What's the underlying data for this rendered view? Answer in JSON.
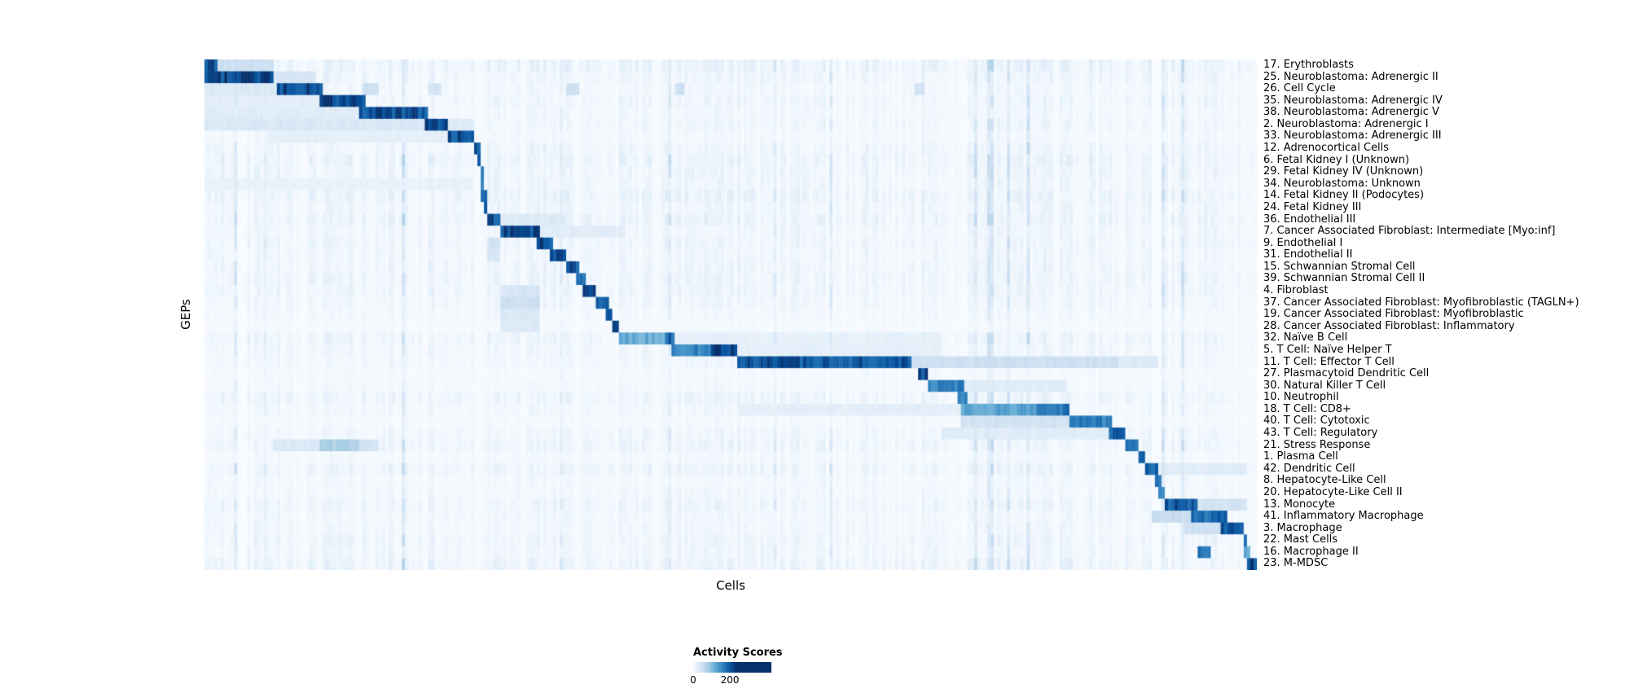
{
  "page": {
    "background": "#ffffff"
  },
  "chart_data": {
    "type": "heatmap",
    "title": "",
    "xlabel": "Cells",
    "ylabel": "GEPs",
    "colormap": "Blues",
    "colormap_stops": [
      [
        0.0,
        "#f7fbff"
      ],
      [
        0.125,
        "#deebf7"
      ],
      [
        0.25,
        "#c6dbef"
      ],
      [
        0.375,
        "#9ecae1"
      ],
      [
        0.5,
        "#6baed6"
      ],
      [
        0.625,
        "#4292c6"
      ],
      [
        0.75,
        "#2171b5"
      ],
      [
        0.875,
        "#08519c"
      ],
      [
        1.0,
        "#08306b"
      ]
    ],
    "colorbar": {
      "label": "Activity Scores",
      "min": 0,
      "max": 200,
      "ticks": [
        {
          "label": "0",
          "pos": 0.0
        },
        {
          "label": "200",
          "pos": 0.47
        }
      ]
    },
    "segment_format": "[x_start_fraction, x_end_fraction, activity_score]",
    "noise": {
      "columns": 320,
      "seed": 42,
      "base_max": 14,
      "streak_prob": 0.055,
      "streak_max": 42,
      "row_gain_min": 0.35,
      "row_gain_max": 1.35
    },
    "rows": [
      {
        "label": "17. Erythroblasts",
        "segments": [
          [
            0.0,
            0.012,
            185
          ],
          [
            0.012,
            0.065,
            45
          ]
        ]
      },
      {
        "label": "25. Neuroblastoma: Adrenergic II",
        "segments": [
          [
            0.0,
            0.065,
            200
          ],
          [
            0.065,
            0.105,
            35
          ]
        ]
      },
      {
        "label": "26. Cell Cycle",
        "segments": [
          [
            0.068,
            0.111,
            195
          ],
          [
            0.0,
            0.068,
            30
          ],
          [
            0.15,
            0.165,
            45
          ],
          [
            0.212,
            0.225,
            40
          ],
          [
            0.345,
            0.355,
            50
          ],
          [
            0.447,
            0.457,
            45
          ],
          [
            0.675,
            0.685,
            40
          ]
        ]
      },
      {
        "label": "35. Neuroblastoma: Adrenergic IV",
        "segments": [
          [
            0.108,
            0.152,
            195
          ],
          [
            0.0,
            0.108,
            22
          ]
        ]
      },
      {
        "label": "38. Neuroblastoma: Adrenergic V",
        "segments": [
          [
            0.148,
            0.212,
            190
          ],
          [
            0.0,
            0.148,
            25
          ]
        ]
      },
      {
        "label": "2. Neuroblastoma: Adrenergic I",
        "segments": [
          [
            0.21,
            0.231,
            200
          ],
          [
            0.0,
            0.21,
            32
          ],
          [
            0.231,
            0.257,
            25
          ]
        ]
      },
      {
        "label": "33. Neuroblastoma: Adrenergic III",
        "segments": [
          [
            0.23,
            0.257,
            190
          ],
          [
            0.06,
            0.23,
            20
          ]
        ]
      },
      {
        "label": "12. Adrenocortical Cells",
        "segments": [
          [
            0.257,
            0.263,
            185
          ]
        ]
      },
      {
        "label": "6. Fetal Kidney I (Unknown)",
        "segments": [
          [
            0.259,
            0.264,
            170
          ]
        ]
      },
      {
        "label": "29. Fetal Kidney IV (Unknown)",
        "segments": [
          [
            0.261,
            0.266,
            160
          ]
        ]
      },
      {
        "label": "34. Neuroblastoma: Unknown",
        "segments": [
          [
            0.262,
            0.267,
            150
          ],
          [
            0.0,
            0.257,
            15
          ]
        ]
      },
      {
        "label": "14. Fetal Kidney II (Podocytes)",
        "segments": [
          [
            0.264,
            0.268,
            170
          ]
        ]
      },
      {
        "label": "24. Fetal Kidney III",
        "segments": [
          [
            0.265,
            0.27,
            175
          ]
        ]
      },
      {
        "label": "36. Endothelial III",
        "segments": [
          [
            0.269,
            0.282,
            190
          ],
          [
            0.282,
            0.345,
            28
          ]
        ]
      },
      {
        "label": "7. Cancer Associated Fibroblast: Intermediate [Myo:inf]",
        "segments": [
          [
            0.282,
            0.318,
            195
          ],
          [
            0.318,
            0.4,
            25
          ]
        ]
      },
      {
        "label": "9. Endothelial I",
        "segments": [
          [
            0.316,
            0.331,
            190
          ],
          [
            0.269,
            0.282,
            40
          ]
        ]
      },
      {
        "label": "31. Endothelial II",
        "segments": [
          [
            0.329,
            0.344,
            185
          ],
          [
            0.269,
            0.282,
            35
          ]
        ]
      },
      {
        "label": "15. Schwannian Stromal Cell",
        "segments": [
          [
            0.344,
            0.356,
            185
          ]
        ]
      },
      {
        "label": "39. Schwannian Stromal Cell II",
        "segments": [
          [
            0.352,
            0.363,
            180
          ]
        ]
      },
      {
        "label": "4. Fibroblast",
        "segments": [
          [
            0.359,
            0.373,
            185
          ],
          [
            0.282,
            0.318,
            35
          ]
        ]
      },
      {
        "label": "37. Cancer Associated Fibroblast: Myofibroblastic (TAGLN+)",
        "segments": [
          [
            0.373,
            0.383,
            190
          ],
          [
            0.282,
            0.318,
            45
          ]
        ]
      },
      {
        "label": "19. Cancer Associated Fibroblast: Myofibroblastic",
        "segments": [
          [
            0.38,
            0.389,
            185
          ],
          [
            0.282,
            0.318,
            30
          ]
        ]
      },
      {
        "label": "28. Cancer Associated Fibroblast: Inflammatory",
        "segments": [
          [
            0.386,
            0.395,
            185
          ],
          [
            0.282,
            0.32,
            28
          ]
        ]
      },
      {
        "label": "32. Naïve B Cell",
        "segments": [
          [
            0.395,
            0.436,
            110
          ],
          [
            0.436,
            0.448,
            175
          ],
          [
            0.448,
            0.7,
            18
          ]
        ]
      },
      {
        "label": "5. T Cell: Naïve Helper T",
        "segments": [
          [
            0.445,
            0.48,
            150
          ],
          [
            0.48,
            0.507,
            195
          ],
          [
            0.507,
            0.7,
            20
          ]
        ]
      },
      {
        "label": "11. T Cell: Effector T Cell",
        "segments": [
          [
            0.505,
            0.672,
            185
          ],
          [
            0.672,
            0.87,
            45
          ],
          [
            0.87,
            0.905,
            30
          ]
        ]
      },
      {
        "label": "27. Plasmacytoid Dendritic Cell",
        "segments": [
          [
            0.678,
            0.686,
            190
          ]
        ]
      },
      {
        "label": "30. Natural Killer T Cell",
        "segments": [
          [
            0.686,
            0.722,
            150
          ],
          [
            0.722,
            0.82,
            25
          ]
        ]
      },
      {
        "label": "10. Neutrophil",
        "segments": [
          [
            0.717,
            0.724,
            140
          ]
        ]
      },
      {
        "label": "18. T Cell: CD8+",
        "segments": [
          [
            0.718,
            0.79,
            120
          ],
          [
            0.79,
            0.822,
            160
          ],
          [
            0.505,
            0.718,
            22
          ]
        ]
      },
      {
        "label": "40. T Cell: Cytotoxic",
        "segments": [
          [
            0.822,
            0.862,
            155
          ],
          [
            0.718,
            0.822,
            40
          ]
        ]
      },
      {
        "label": "43. T Cell: Regulatory",
        "segments": [
          [
            0.859,
            0.874,
            170
          ],
          [
            0.7,
            0.859,
            25
          ]
        ]
      },
      {
        "label": "21. Stress Response",
        "segments": [
          [
            0.874,
            0.888,
            170
          ],
          [
            0.108,
            0.148,
            70
          ],
          [
            0.065,
            0.108,
            30
          ],
          [
            0.148,
            0.165,
            40
          ]
        ]
      },
      {
        "label": "1. Plasma Cell",
        "segments": [
          [
            0.886,
            0.894,
            180
          ]
        ]
      },
      {
        "label": "42. Dendritic Cell",
        "segments": [
          [
            0.894,
            0.906,
            175
          ],
          [
            0.906,
            0.99,
            25
          ]
        ]
      },
      {
        "label": "8. Hepatocyte-Like Cell",
        "segments": [
          [
            0.904,
            0.909,
            160
          ]
        ]
      },
      {
        "label": "20. Hepatocyte-Like Cell II",
        "segments": [
          [
            0.906,
            0.911,
            150
          ]
        ]
      },
      {
        "label": "13. Monocyte",
        "segments": [
          [
            0.911,
            0.943,
            180
          ],
          [
            0.943,
            0.992,
            40
          ]
        ]
      },
      {
        "label": "41. Inflammatory Macrophage",
        "segments": [
          [
            0.936,
            0.973,
            170
          ],
          [
            0.9,
            0.936,
            50
          ]
        ]
      },
      {
        "label": "3. Macrophage",
        "segments": [
          [
            0.967,
            0.987,
            180
          ],
          [
            0.93,
            0.967,
            45
          ]
        ]
      },
      {
        "label": "22. Mast Cells",
        "segments": [
          [
            0.987,
            0.991,
            170
          ]
        ]
      },
      {
        "label": "16. Macrophage II",
        "segments": [
          [
            0.944,
            0.956,
            150
          ],
          [
            0.988,
            0.993,
            110
          ]
        ]
      },
      {
        "label": "23. M-MDSC",
        "segments": [
          [
            0.992,
            1.0,
            195
          ]
        ]
      }
    ]
  }
}
